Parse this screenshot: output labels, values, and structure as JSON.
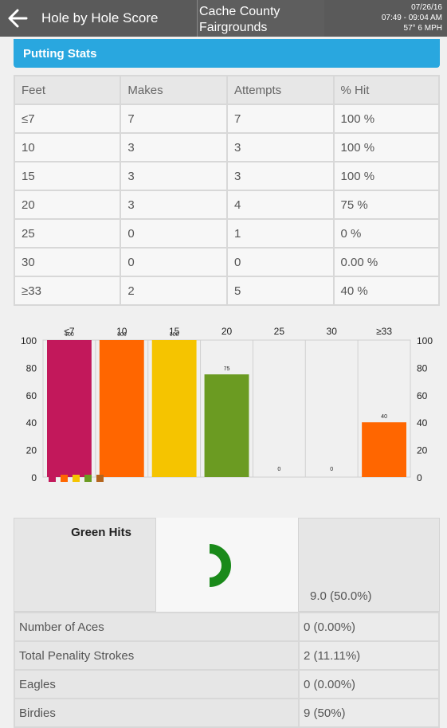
{
  "app_bar": {
    "title": "Hole by Hole Score",
    "course_line1": "Cache County",
    "course_line2": "Fairgrounds",
    "date": "07/26/16",
    "time_range": "07:49 - 09:04 AM",
    "weather": "57°  6 MPH"
  },
  "section": {
    "title": "Putting Stats"
  },
  "putting_table": {
    "headers": [
      "Feet",
      "Makes",
      "Attempts",
      "% Hit"
    ],
    "rows": [
      [
        "≤7",
        "7",
        "7",
        "100 %"
      ],
      [
        "10",
        "3",
        "3",
        "100 %"
      ],
      [
        "15",
        "3",
        "3",
        "100 %"
      ],
      [
        "20",
        "3",
        "4",
        "75 %"
      ],
      [
        "25",
        "0",
        "1",
        "0 %"
      ],
      [
        "30",
        "0",
        "0",
        "0.00 %"
      ],
      [
        "≥33",
        "2",
        "5",
        "40 %"
      ]
    ]
  },
  "chart_data": {
    "type": "bar",
    "categories": [
      "≤7",
      "10",
      "15",
      "20",
      "25",
      "30",
      "≥33"
    ],
    "values": [
      100,
      100,
      100,
      75,
      0,
      0,
      40
    ],
    "data_labels": [
      "100",
      "100",
      "100",
      "75",
      "0",
      "0",
      "40"
    ],
    "colors": [
      "#c2185b",
      "#ff6600",
      "#f5c400",
      "#6b9b22",
      "#ff6600",
      "#ff6600",
      "#ff6600"
    ],
    "legend_colors": [
      "#c2185b",
      "#ff6600",
      "#f5c400",
      "#6b9b22",
      "#b5651d"
    ],
    "ylim": [
      0,
      100
    ],
    "yticks": [
      0,
      20,
      40,
      60,
      80,
      100
    ],
    "title": "",
    "xlabel": "",
    "ylabel": ""
  },
  "green_hits": {
    "title": "Green Hits",
    "value": "9.0 (50.0%)",
    "fraction": 0.5,
    "color": "#1a8a1a"
  },
  "stats": [
    {
      "label": "Number of Aces",
      "value": "0 (0.00%)"
    },
    {
      "label": "Total Penality Strokes",
      "value": "2 (11.11%)"
    },
    {
      "label": "Eagles",
      "value": "0 (0.00%)"
    },
    {
      "label": "Birdies",
      "value": "9 (50%)"
    }
  ]
}
